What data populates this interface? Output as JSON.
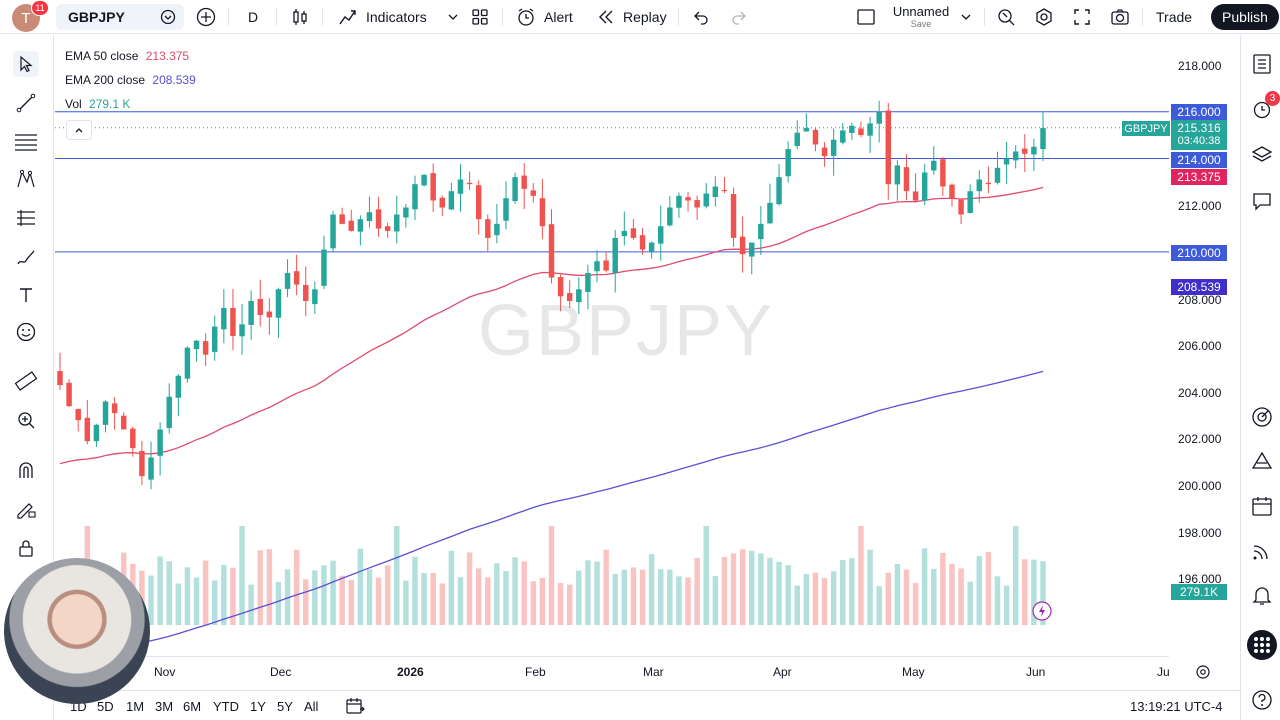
{
  "topbar": {
    "avatar_letter": "T",
    "avatar_badge": "11",
    "symbol": "GBPJPY",
    "interval": "D",
    "indicators_label": "Indicators",
    "alert_label": "Alert",
    "replay_label": "Replay",
    "layout_name": "Unnamed",
    "layout_save": "Save",
    "trade_label": "Trade",
    "publish_label": "Publish"
  },
  "legend": {
    "ema50_label": "EMA 50 close",
    "ema50_value": "213.375",
    "ema200_label": "EMA 200 close",
    "ema200_value": "208.539",
    "vol_label": "Vol",
    "vol_value": "279.1 K"
  },
  "watermark": "GBPJPY",
  "price_axis": {
    "ticks": [
      "218.000",
      "212.000",
      "208.000",
      "206.000",
      "204.000",
      "202.000",
      "200.000",
      "198.000",
      "196.000"
    ],
    "labels": {
      "h216": "216.000",
      "price": "215.316",
      "countdown": "03:40:38",
      "symbol_tag": "GBPJPY",
      "h214": "214.000",
      "ema50": "213.375",
      "h210": "210.000",
      "ema200": "208.539",
      "vol": "279.1K"
    }
  },
  "time_axis": [
    "Nov",
    "Dec",
    "2026",
    "Feb",
    "Mar",
    "Apr",
    "May",
    "Jun",
    "Ju"
  ],
  "bottombar": {
    "ranges": [
      "1D",
      "5D",
      "1M",
      "3M",
      "6M",
      "YTD",
      "1Y",
      "5Y",
      "All"
    ],
    "clock": "13:19:21 UTC-4"
  },
  "rightbar": {
    "alerts_badge": "3"
  },
  "colors": {
    "up": "#26a69a",
    "down": "#ef5350",
    "ema50": "#e04a6e",
    "ema200": "#5b4fd6",
    "hline": "#3d5bd9",
    "accent": "#2962ff"
  },
  "chart_data": {
    "type": "candlestick",
    "symbol": "GBPJPY",
    "x_range": [
      "Oct",
      "Jun"
    ],
    "ylim": [
      195,
      219
    ],
    "horizontal_levels": [
      216.0,
      214.0,
      210.0
    ],
    "last_price": 215.316,
    "series": [
      {
        "name": "EMA 50 close",
        "last": 213.375
      },
      {
        "name": "EMA 200 close",
        "last": 208.539
      },
      {
        "name": "Vol",
        "last": "279.1 K"
      }
    ],
    "closes": [
      204.3,
      203.4,
      202.8,
      201.9,
      202.6,
      203.6,
      203.1,
      202.4,
      201.6,
      200.4,
      201.2,
      202.4,
      203.8,
      204.7,
      205.9,
      206.2,
      205.6,
      206.8,
      207.6,
      206.4,
      206.9,
      207.9,
      207.3,
      207.2,
      208.4,
      209.1,
      208.6,
      207.9,
      208.4,
      210.1,
      211.6,
      211.2,
      210.9,
      211.4,
      211.7,
      211.0,
      210.9,
      211.6,
      211.9,
      212.9,
      213.3,
      212.2,
      211.9,
      212.6,
      213.1,
      212.9,
      211.4,
      210.6,
      211.2,
      212.3,
      213.2,
      212.7,
      212.4,
      211.1,
      208.9,
      208.1,
      207.9,
      208.4,
      209.1,
      209.6,
      209.2,
      210.6,
      210.9,
      210.6,
      210.1,
      210.4,
      211.1,
      211.9,
      212.4,
      212.2,
      211.9,
      212.5,
      212.8,
      212.6,
      210.6,
      209.9,
      210.4,
      211.2,
      212.1,
      213.2,
      214.4,
      215.1,
      215.3,
      214.6,
      214.1,
      214.8,
      215.2,
      215.4,
      215.0,
      215.5,
      216.0,
      212.9,
      213.7,
      212.6,
      212.2,
      213.4,
      213.9,
      212.8,
      212.3,
      211.6,
      212.6,
      213.1,
      212.9,
      213.6,
      214.0,
      214.3,
      214.2,
      214.5,
      215.3
    ]
  }
}
